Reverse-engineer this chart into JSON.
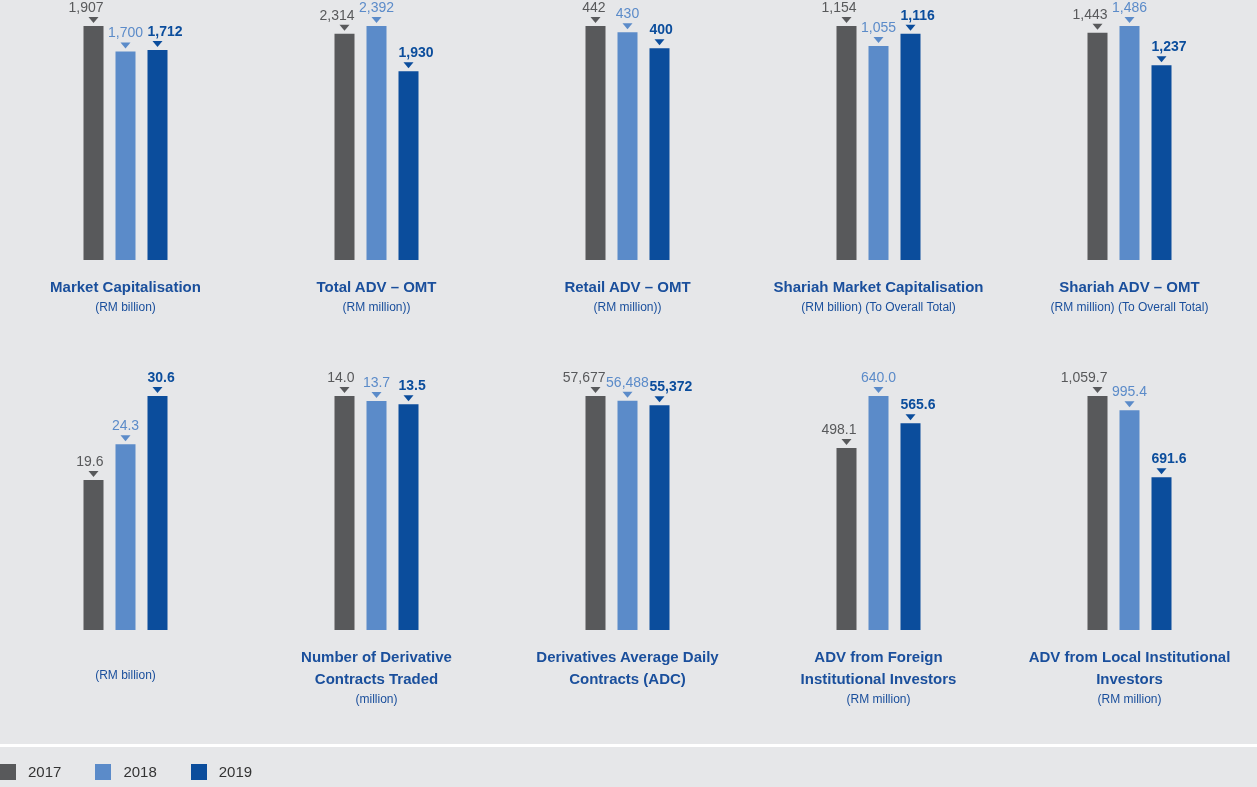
{
  "chart_data": [
    {
      "type": "bar",
      "title": "Market Capitalisation",
      "subtitle": "(RM billion)",
      "categories": [
        null,
        null,
        null
      ],
      "colors": [
        "#58595b",
        "#5b8bc9",
        "#0b4d9c"
      ],
      "values": [
        1907,
        1700,
        1712
      ],
      "value_labels": [
        "1,907",
        "1,700",
        "1,712"
      ]
    },
    {
      "type": "bar",
      "title": "Total ADV – OMT",
      "subtitle": "(RM million))",
      "categories": [
        null,
        null,
        null
      ],
      "colors": [
        "#58595b",
        "#5b8bc9",
        "#0b4d9c"
      ],
      "values": [
        2314,
        2392,
        1930
      ],
      "value_labels": [
        "2,314",
        "2,392",
        "1,930"
      ]
    },
    {
      "type": "bar",
      "title": "Retail ADV – OMT",
      "subtitle": "(RM million))",
      "categories": [
        null,
        null,
        null
      ],
      "colors": [
        "#58595b",
        "#5b8bc9",
        "#0b4d9c"
      ],
      "values": [
        442,
        430,
        400
      ],
      "value_labels": [
        "442",
        "430",
        "400"
      ]
    },
    {
      "type": "bar",
      "title": "Shariah Market Capitalisation",
      "subtitle": "(RM billion) (To Overall Total)",
      "categories": [
        null,
        null,
        null
      ],
      "colors": [
        "#58595b",
        "#5b8bc9",
        "#0b4d9c"
      ],
      "values": [
        1154,
        1055,
        1116
      ],
      "value_labels": [
        "1,154",
        "1,055",
        "1,116"
      ]
    },
    {
      "type": "bar",
      "title": "Shariah ADV – OMT",
      "subtitle": "(RM million) (To Overall Total)",
      "categories": [
        null,
        null,
        null
      ],
      "colors": [
        "#58595b",
        "#5b8bc9",
        "#0b4d9c"
      ],
      "values": [
        1443,
        1486,
        1237
      ],
      "value_labels": [
        "1,443",
        "1,486",
        "1,237"
      ]
    },
    {
      "type": "bar",
      "subtitle": "(RM billion)",
      "categories": [
        null,
        null,
        null
      ],
      "colors": [
        "#58595b",
        "#5b8bc9",
        "#0b4d9c"
      ],
      "values": [
        19.6,
        24.3,
        30.6
      ],
      "value_labels": [
        "19.6",
        "24.3",
        "30.6"
      ]
    },
    {
      "type": "bar",
      "title": "Number of Derivative Contracts Traded",
      "subtitle": "(million)",
      "categories": [
        null,
        null,
        null
      ],
      "colors": [
        "#58595b",
        "#5b8bc9",
        "#0b4d9c"
      ],
      "values": [
        14.0,
        13.7,
        13.5
      ],
      "value_labels": [
        "14.0",
        "13.7",
        "13.5"
      ]
    },
    {
      "type": "bar",
      "title": "Derivatives Average Daily Contracts (ADC)",
      "categories": [
        null,
        null,
        null
      ],
      "colors": [
        "#58595b",
        "#5b8bc9",
        "#0b4d9c"
      ],
      "values": [
        57677,
        56488,
        55372
      ],
      "value_labels": [
        "57,677",
        "56,488",
        "55,372"
      ]
    },
    {
      "type": "bar",
      "title": "ADV from Foreign Institutional Investors",
      "subtitle": "(RM million)",
      "categories": [
        null,
        null,
        null
      ],
      "colors": [
        "#58595b",
        "#5b8bc9",
        "#0b4d9c"
      ],
      "values": [
        498.1,
        640.0,
        565.6
      ],
      "value_labels": [
        "498.1",
        "640.0",
        "565.6"
      ]
    },
    {
      "type": "bar",
      "title": "ADV from Local Institutional Investors",
      "subtitle": "(RM million)",
      "categories": [
        null,
        null,
        null
      ],
      "colors": [
        "#58595b",
        "#5b8bc9",
        "#0b4d9c"
      ],
      "values": [
        1059.7,
        995.4,
        691.6
      ],
      "value_labels": [
        "1,059.7",
        "995.4",
        "691.6"
      ]
    },
    {
      "type": "other",
      "categories": [
        "2017",
        "2018",
        "2019"
      ],
      "colors": [
        "#58595b",
        "#5b8bc9",
        "#0b4d9c"
      ]
    }
  ]
}
